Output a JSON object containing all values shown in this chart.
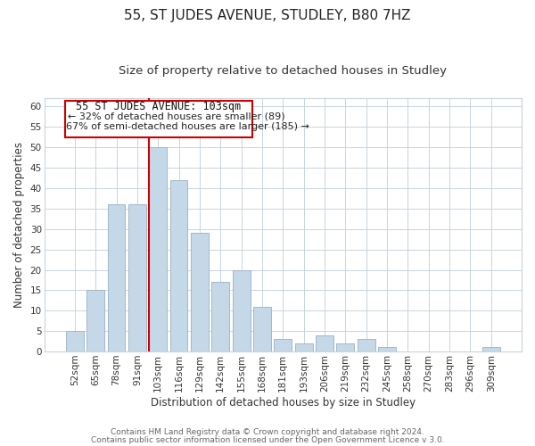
{
  "title": "55, ST JUDES AVENUE, STUDLEY, B80 7HZ",
  "subtitle": "Size of property relative to detached houses in Studley",
  "xlabel": "Distribution of detached houses by size in Studley",
  "ylabel": "Number of detached properties",
  "categories": [
    "52sqm",
    "65sqm",
    "78sqm",
    "91sqm",
    "103sqm",
    "116sqm",
    "129sqm",
    "142sqm",
    "155sqm",
    "168sqm",
    "181sqm",
    "193sqm",
    "206sqm",
    "219sqm",
    "232sqm",
    "245sqm",
    "258sqm",
    "270sqm",
    "283sqm",
    "296sqm",
    "309sqm"
  ],
  "values": [
    5,
    15,
    36,
    36,
    50,
    42,
    29,
    17,
    20,
    11,
    3,
    2,
    4,
    2,
    3,
    1,
    0,
    0,
    0,
    0,
    1
  ],
  "bar_color": "#c5d8e8",
  "bar_edge_color": "#a0b8cc",
  "highlight_index": 4,
  "highlight_line_color": "#cc0000",
  "ylim": [
    0,
    62
  ],
  "yticks": [
    0,
    5,
    10,
    15,
    20,
    25,
    30,
    35,
    40,
    45,
    50,
    55,
    60
  ],
  "annotation_title": "55 ST JUDES AVENUE: 103sqm",
  "annotation_line1": "← 32% of detached houses are smaller (89)",
  "annotation_line2": "67% of semi-detached houses are larger (185) →",
  "footer1": "Contains HM Land Registry data © Crown copyright and database right 2024.",
  "footer2": "Contains public sector information licensed under the Open Government Licence v 3.0.",
  "background_color": "#ffffff",
  "grid_color": "#c8d4de",
  "title_fontsize": 11,
  "subtitle_fontsize": 9.5,
  "axis_label_fontsize": 8.5,
  "tick_fontsize": 7.5,
  "footer_fontsize": 6.5,
  "annot_fontsize": 8,
  "annot_title_fontsize": 8.5
}
